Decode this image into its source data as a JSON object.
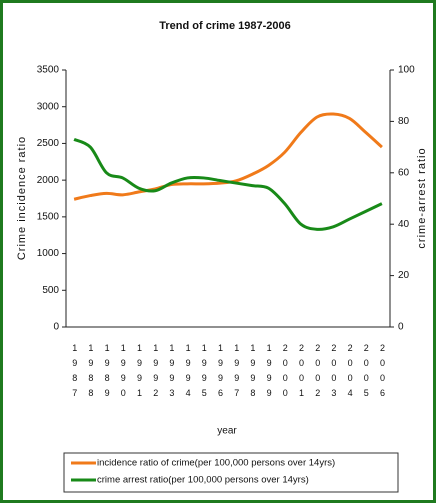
{
  "chart_data": {
    "type": "line",
    "title": "Trend of crime 1987-2006",
    "x_label": "year",
    "y_label": "Crime incidence ratio",
    "y2_label": "crime-arrest ratio",
    "categories": [
      "1987",
      "1988",
      "1989",
      "1990",
      "1991",
      "1992",
      "1993",
      "1994",
      "1995",
      "1996",
      "1997",
      "1998",
      "1999",
      "2000",
      "2001",
      "2002",
      "2003",
      "2004",
      "2005",
      "2006"
    ],
    "series": [
      {
        "name": "incidence ratio of crime(per 100,000 persons over 14yrs)",
        "color": "#f07a1a",
        "axis": "y",
        "values": [
          1740,
          1790,
          1820,
          1800,
          1840,
          1880,
          1940,
          1950,
          1950,
          1960,
          1990,
          2080,
          2200,
          2380,
          2650,
          2860,
          2900,
          2840,
          2650,
          2450
        ]
      },
      {
        "name": "crime arrest ratio(per 100,000 persons over 14yrs)",
        "color": "#188a18",
        "axis": "y2",
        "values": [
          73,
          70,
          60,
          58,
          54,
          53,
          56,
          58,
          58,
          57,
          56,
          55,
          54,
          48,
          40,
          38,
          39,
          42,
          45,
          48
        ]
      }
    ],
    "ylim": [
      0,
      3500
    ],
    "yticks": [
      0,
      500,
      1000,
      1500,
      2000,
      2500,
      3000,
      3500
    ],
    "y2lim": [
      0,
      100
    ],
    "y2ticks": [
      0,
      20,
      40,
      60,
      80,
      100
    ],
    "legend": "bottom"
  }
}
